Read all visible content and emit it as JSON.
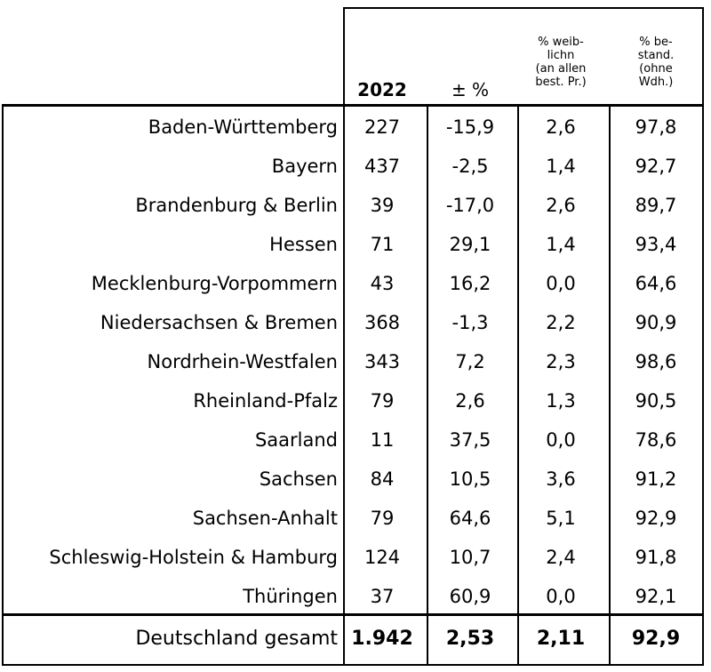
{
  "headers": {
    "c1": "2022",
    "c2": "± %",
    "c3": [
      "% weib-",
      "lichn",
      "(an allen",
      "best. Pr.)"
    ],
    "c4": [
      "% be-",
      "stand.",
      "(ohne",
      "Wdh.)"
    ]
  },
  "rows": [
    {
      "region": "Baden-Württemberg",
      "c1": "227",
      "c2": "-15,9",
      "c3": "2,6",
      "c4": "97,8"
    },
    {
      "region": "Bayern",
      "c1": "437",
      "c2": "-2,5",
      "c3": "1,4",
      "c4": "92,7"
    },
    {
      "region": "Brandenburg & Berlin",
      "c1": "39",
      "c2": "-17,0",
      "c3": "2,6",
      "c4": "89,7"
    },
    {
      "region": "Hessen",
      "c1": "71",
      "c2": "29,1",
      "c3": "1,4",
      "c4": "93,4"
    },
    {
      "region": "Mecklenburg-Vorpommern",
      "c1": "43",
      "c2": "16,2",
      "c3": "0,0",
      "c4": "64,6"
    },
    {
      "region": "Niedersachsen & Bremen",
      "c1": "368",
      "c2": "-1,3",
      "c3": "2,2",
      "c4": "90,9"
    },
    {
      "region": "Nordrhein-Westfalen",
      "c1": "343",
      "c2": "7,2",
      "c3": "2,3",
      "c4": "98,6"
    },
    {
      "region": "Rheinland-Pfalz",
      "c1": "79",
      "c2": "2,6",
      "c3": "1,3",
      "c4": "90,5"
    },
    {
      "region": "Saarland",
      "c1": "11",
      "c2": "37,5",
      "c3": "0,0",
      "c4": "78,6"
    },
    {
      "region": "Sachsen",
      "c1": "84",
      "c2": "10,5",
      "c3": "3,6",
      "c4": "91,2"
    },
    {
      "region": "Sachsen-Anhalt",
      "c1": "79",
      "c2": "64,6",
      "c3": "5,1",
      "c4": "92,9"
    },
    {
      "region": "Schleswig-Holstein & Hamburg",
      "c1": "124",
      "c2": "10,7",
      "c3": "2,4",
      "c4": "91,8"
    },
    {
      "region": "Thüringen",
      "c1": "37",
      "c2": "60,9",
      "c3": "0,0",
      "c4": "92,1"
    }
  ],
  "total": {
    "region": "Deutschland gesamt",
    "c1": "1.942",
    "c2": "2,53",
    "c3": "2,11",
    "c4": "92,9"
  }
}
